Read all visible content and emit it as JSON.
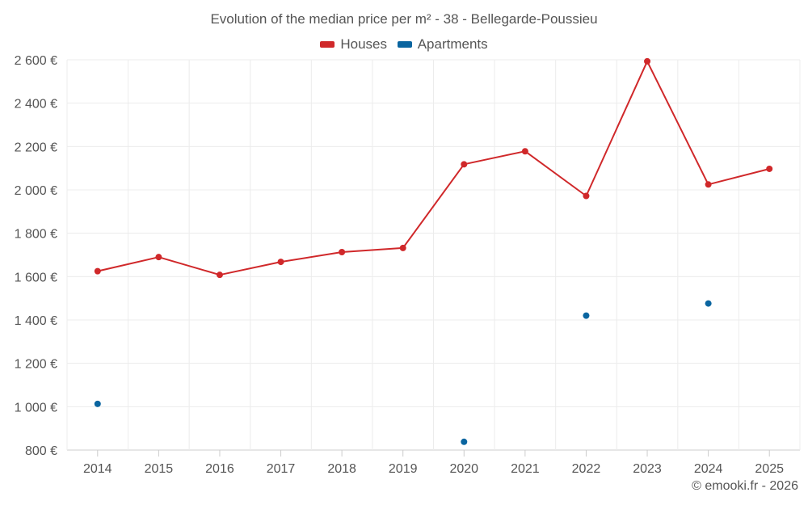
{
  "chart_data": {
    "type": "line",
    "title": "Evolution of the median price per m² - 38 - Bellegarde-Poussieu",
    "x": [
      "2014",
      "2015",
      "2016",
      "2017",
      "2018",
      "2019",
      "2020",
      "2021",
      "2022",
      "2023",
      "2024",
      "2025"
    ],
    "ylim": [
      800,
      2600
    ],
    "yticks": [
      800,
      1000,
      1200,
      1400,
      1600,
      1800,
      2000,
      2200,
      2400,
      2600
    ],
    "ytick_labels": [
      "800 €",
      "1 000 €",
      "1 200 €",
      "1 400 €",
      "1 600 €",
      "1 800 €",
      "2 000 €",
      "2 200 €",
      "2 400 €",
      "2 600 €"
    ],
    "grid": true,
    "legend_position": "top-center",
    "series": [
      {
        "name": "Houses",
        "color": "#d0282a",
        "line": true,
        "values": [
          1625,
          1690,
          1608,
          1668,
          1713,
          1732,
          2118,
          2178,
          1972,
          2593,
          2025,
          2097
        ]
      },
      {
        "name": "Apartments",
        "color": "#0a65a0",
        "line": false,
        "values": [
          1013,
          null,
          null,
          null,
          null,
          null,
          838,
          null,
          1420,
          null,
          1476,
          null
        ]
      }
    ],
    "credit": "© emooki.fr - 2026"
  }
}
